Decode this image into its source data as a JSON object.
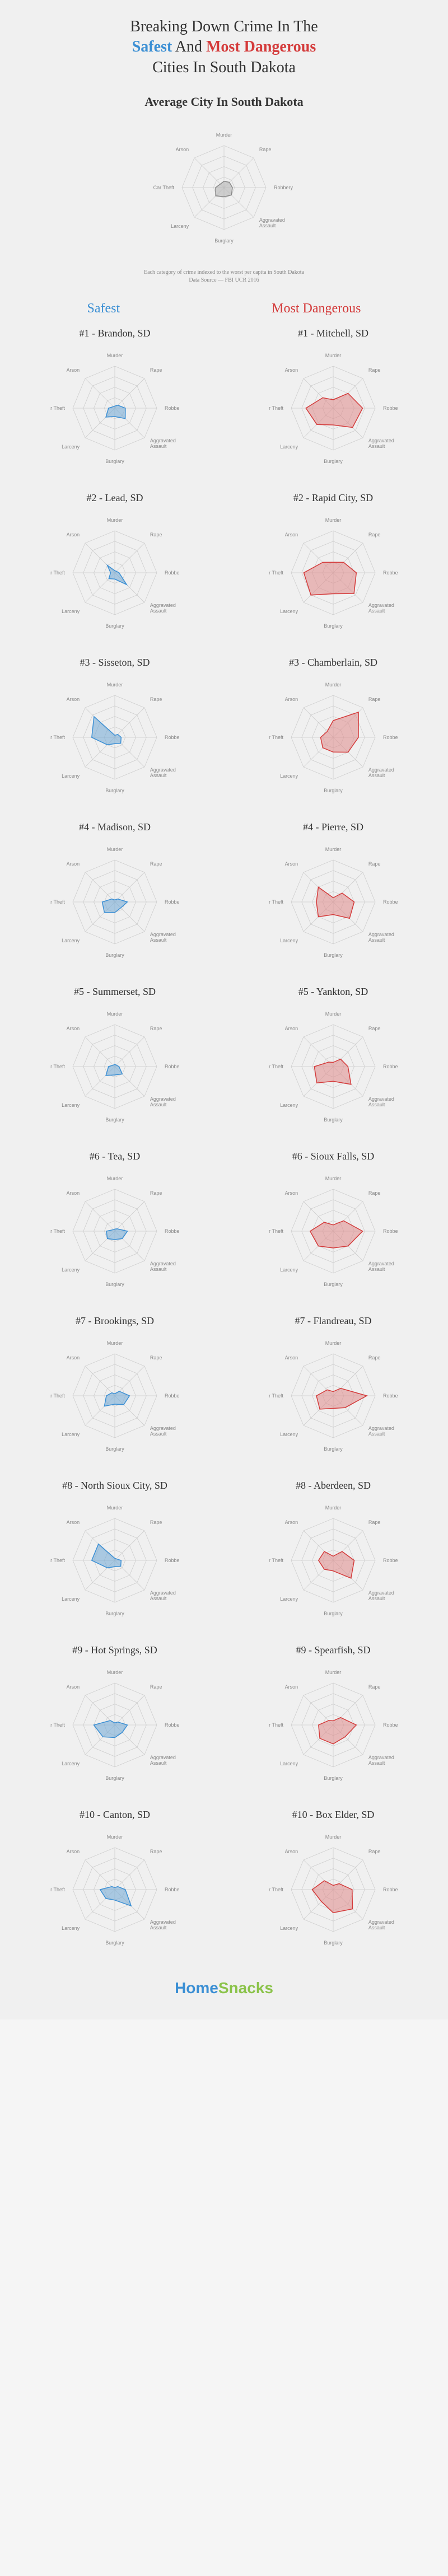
{
  "title_prefix": "Breaking Down Crime In The",
  "title_safest": "Safest",
  "title_and": "And",
  "title_dangerous": "Most Dangerous",
  "title_suffix": "Cities In South Dakota",
  "avg_title": "Average City In South Dakota",
  "footnote1": "Each category of crime indexed to the worst per capita in South Dakota",
  "footnote2": "Data Source — FBI UCR 2016",
  "col_safest": "Safest",
  "col_dangerous": "Most Dangerous",
  "logo_home": "Home",
  "logo_snacks": "Snacks",
  "radar": {
    "axes": [
      "Murder",
      "Rape",
      "Robbery",
      "Aggravated Assault",
      "Burglary",
      "Larceny",
      "Car Theft",
      "Arson"
    ],
    "rings": 4,
    "ring_color": "#cccccc",
    "axis_color": "#cccccc",
    "label_color": "#888888",
    "label_fontsize": 9,
    "chart_radius": 75,
    "fill_opacity": 0.55,
    "stroke_width": 1.5,
    "safest_color": "#6fa8d6",
    "safest_stroke": "#3b8fd4",
    "dangerous_color": "#e08a8a",
    "dangerous_stroke": "#d43b3b",
    "avg_color": "#b0b0b0",
    "avg_stroke": "#888888"
  },
  "avg_city": {
    "values": [
      0.15,
      0.18,
      0.2,
      0.25,
      0.22,
      0.28,
      0.2,
      0.12
    ]
  },
  "safest_cities": [
    {
      "rank": "#1",
      "name": "Brandon, SD",
      "values": [
        0.05,
        0.1,
        0.25,
        0.35,
        0.2,
        0.3,
        0.15,
        0.05
      ]
    },
    {
      "rank": "#2",
      "name": "Lead, SD",
      "values": [
        0.05,
        0.05,
        0.1,
        0.4,
        0.15,
        0.2,
        0.1,
        0.25
      ]
    },
    {
      "rank": "#3",
      "name": "Sisseton, SD",
      "values": [
        0.05,
        0.1,
        0.15,
        0.2,
        0.15,
        0.25,
        0.55,
        0.7
      ]
    },
    {
      "rank": "#4",
      "name": "Madison, SD",
      "values": [
        0.05,
        0.1,
        0.3,
        0.2,
        0.25,
        0.35,
        0.3,
        0.1
      ]
    },
    {
      "rank": "#5",
      "name": "Summerset, SD",
      "values": [
        0.05,
        0.05,
        0.1,
        0.25,
        0.2,
        0.3,
        0.15,
        0.05
      ]
    },
    {
      "rank": "#6",
      "name": "Tea, SD",
      "values": [
        0.05,
        0.08,
        0.3,
        0.25,
        0.2,
        0.25,
        0.2,
        0.05
      ]
    },
    {
      "rank": "#7",
      "name": "Brookings, SD",
      "values": [
        0.05,
        0.15,
        0.35,
        0.3,
        0.2,
        0.35,
        0.2,
        0.1
      ]
    },
    {
      "rank": "#8",
      "name": "North Sioux City, SD",
      "values": [
        0.05,
        0.05,
        0.15,
        0.2,
        0.15,
        0.25,
        0.55,
        0.55
      ]
    },
    {
      "rank": "#9",
      "name": "Hot Springs, SD",
      "values": [
        0.05,
        0.1,
        0.3,
        0.25,
        0.3,
        0.4,
        0.5,
        0.15
      ]
    },
    {
      "rank": "#10",
      "name": "Canton, SD",
      "values": [
        0.05,
        0.1,
        0.25,
        0.55,
        0.25,
        0.3,
        0.35,
        0.1
      ]
    }
  ],
  "dangerous_cities": [
    {
      "rank": "#1",
      "name": "Mitchell, SD",
      "values": [
        0.2,
        0.5,
        0.7,
        0.65,
        0.4,
        0.55,
        0.65,
        0.35
      ]
    },
    {
      "rank": "#2",
      "name": "Rapid City, SD",
      "values": [
        0.25,
        0.35,
        0.55,
        0.7,
        0.5,
        0.75,
        0.7,
        0.35
      ]
    },
    {
      "rank": "#3",
      "name": "Chamberlain, SD",
      "values": [
        0.4,
        0.85,
        0.6,
        0.5,
        0.35,
        0.35,
        0.3,
        0.2
      ]
    },
    {
      "rank": "#4",
      "name": "Pierre, SD",
      "values": [
        0.1,
        0.3,
        0.5,
        0.55,
        0.3,
        0.5,
        0.4,
        0.5
      ]
    },
    {
      "rank": "#5",
      "name": "Yankton, SD",
      "values": [
        0.1,
        0.25,
        0.35,
        0.6,
        0.35,
        0.55,
        0.45,
        0.15
      ]
    },
    {
      "rank": "#6",
      "name": "Sioux Falls, SD",
      "values": [
        0.15,
        0.35,
        0.7,
        0.5,
        0.4,
        0.5,
        0.55,
        0.3
      ]
    },
    {
      "rank": "#7",
      "name": "Flandreau, SD",
      "values": [
        0.1,
        0.25,
        0.8,
        0.4,
        0.3,
        0.45,
        0.4,
        0.2
      ]
    },
    {
      "rank": "#8",
      "name": "Aberdeen, SD",
      "values": [
        0.1,
        0.3,
        0.5,
        0.6,
        0.25,
        0.3,
        0.35,
        0.3
      ]
    },
    {
      "rank": "#9",
      "name": "Spearfish, SD",
      "values": [
        0.1,
        0.25,
        0.55,
        0.4,
        0.45,
        0.45,
        0.35,
        0.15
      ]
    },
    {
      "rank": "#10",
      "name": "Box Elder, SD",
      "values": [
        0.1,
        0.2,
        0.45,
        0.65,
        0.55,
        0.4,
        0.5,
        0.3
      ]
    }
  ]
}
